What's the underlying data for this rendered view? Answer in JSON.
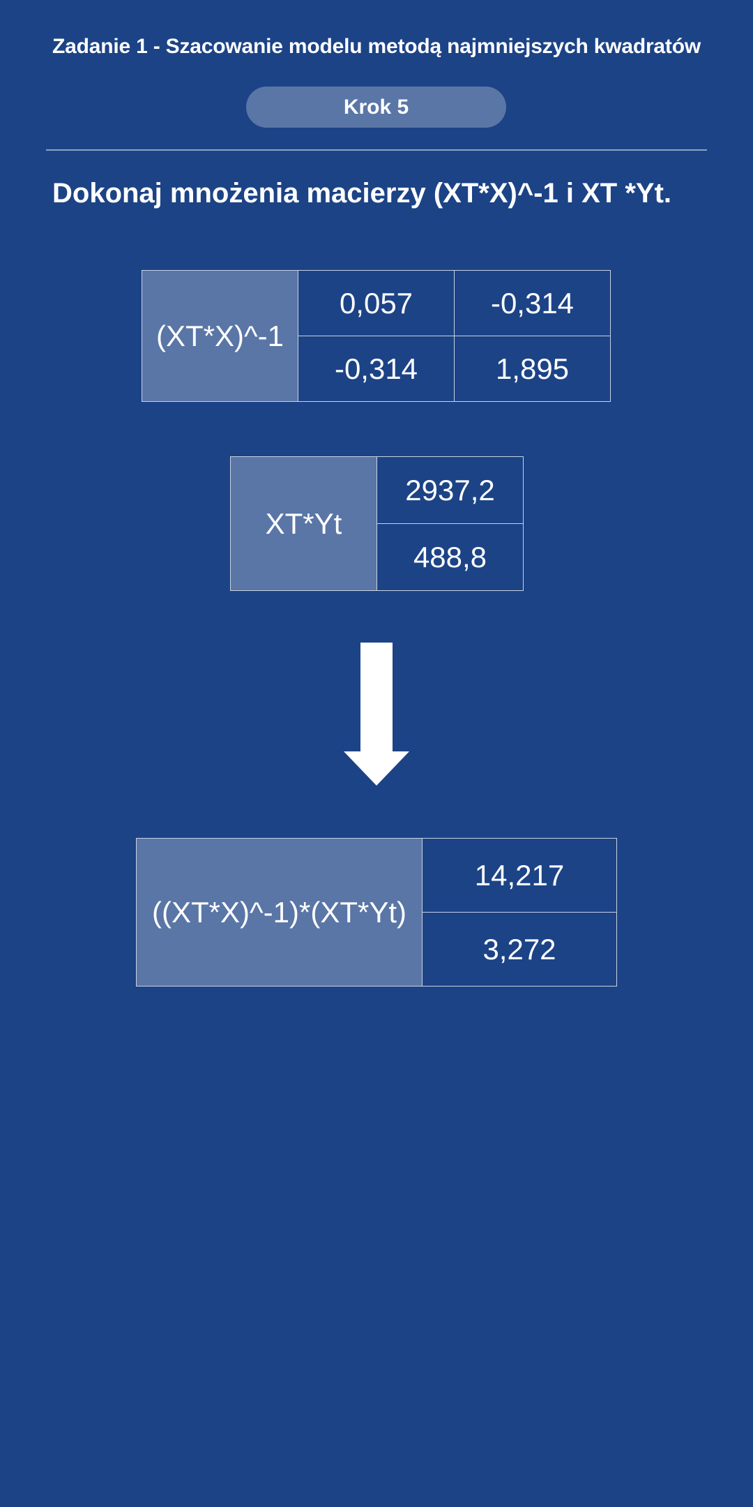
{
  "header": {
    "title": "Zadanie 1 - Szacowanie modelu metodą najmniejszych kwadratów",
    "step_label": "Krok 5"
  },
  "instruction": "Dokonaj mnożenia macierzy (XT*X)^-1 i XT *Yt.",
  "matrix_inverse": {
    "label": "(XT*X)^-1",
    "rows": [
      [
        "0,057",
        "-0,314"
      ],
      [
        "-0,314",
        "1,895"
      ]
    ]
  },
  "matrix_xtyt": {
    "label": "XT*Yt",
    "values": [
      "2937,2",
      "488,8"
    ]
  },
  "arrow_icon": "arrow-down-icon",
  "result": {
    "label": "((XT*X)^-1)*(XT*Yt)",
    "values": [
      "14,217",
      "3,272"
    ]
  },
  "colors": {
    "background": "#1c4386",
    "label_cell": "#5a76a6",
    "pill": "#5a76a6",
    "text": "#ffffff"
  }
}
